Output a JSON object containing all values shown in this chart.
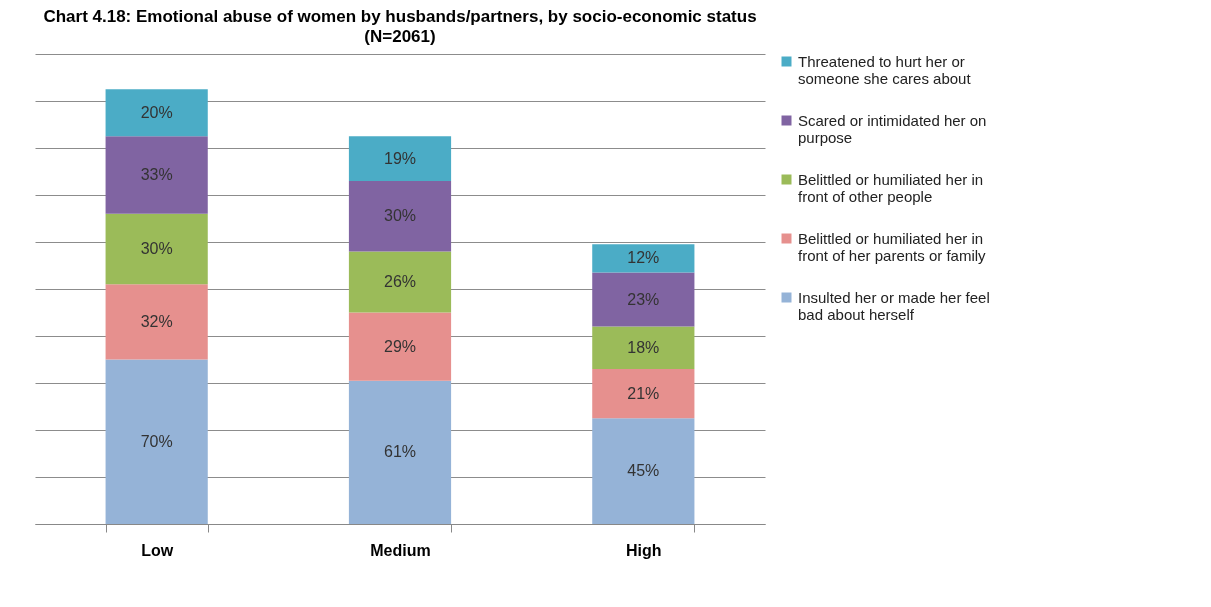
{
  "chart_data": {
    "type": "bar",
    "title": "Chart 4.18: Emotional abuse of women by husbands/partners, by socio-economic status",
    "subtitle": "(N=2061)",
    "categories": [
      "Low",
      "Medium",
      "High"
    ],
    "stacked": true,
    "grid": "y",
    "tick_labels": "x",
    "legend": "right",
    "series": [
      {
        "name": "Insulted her or made her feel bad about herself",
        "color": "#95b3d7",
        "values": [
          70,
          61,
          45
        ],
        "value_labels": [
          "70%",
          "61%",
          "45%"
        ]
      },
      {
        "name": "Belittled or humiliated her in front of her parents or family",
        "color": "#e6908e",
        "values": [
          32,
          29,
          21
        ],
        "value_labels": [
          "32%",
          "29%",
          "21%"
        ]
      },
      {
        "name": "Belittled or humiliated her in front of other people",
        "color": "#9bbb59",
        "values": [
          30,
          26,
          18
        ],
        "value_labels": [
          "30%",
          "26%",
          "18%"
        ]
      },
      {
        "name": "Scared or intimidated her on purpose",
        "color": "#8064a2",
        "values": [
          33,
          30,
          23
        ],
        "value_labels": [
          "33%",
          "30%",
          "23%"
        ]
      },
      {
        "name": "Threatened to hurt her or someone she cares about",
        "color": "#4bacc6",
        "values": [
          20,
          19,
          12
        ],
        "value_labels": [
          "20%",
          "19%",
          "12%"
        ]
      }
    ]
  }
}
